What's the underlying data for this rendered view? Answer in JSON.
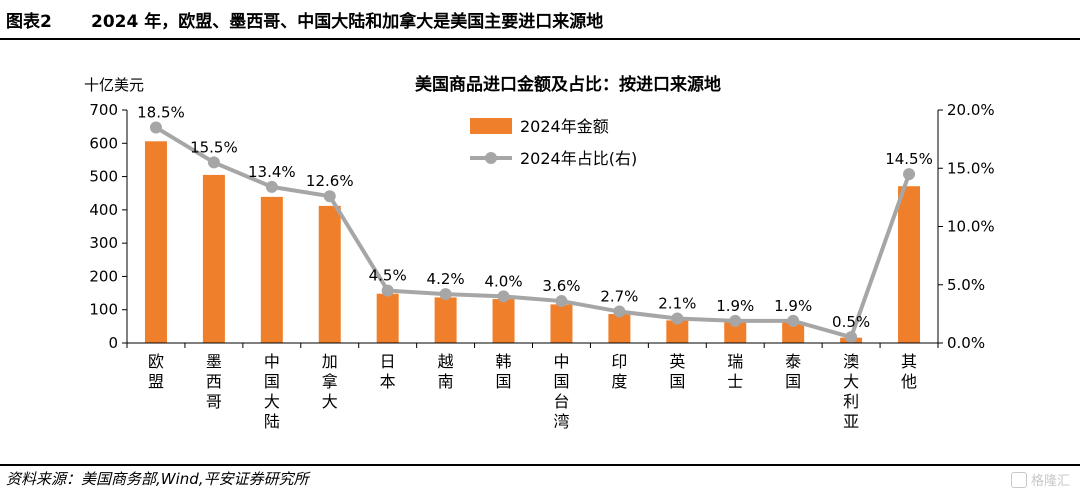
{
  "header": {
    "figure_no": "图表2",
    "title": "2024 年，欧盟、墨西哥、中国大陆和加拿大是美国主要进口来源地"
  },
  "footer": {
    "source": "资料来源：美国商务部,Wind,平安证券研究所"
  },
  "watermark": {
    "text": "格隆汇"
  },
  "chart_data": {
    "type": "bar",
    "title": "美国商品进口金额及占比：按进口来源地",
    "ylabel": "十亿美元",
    "ylim": [
      0,
      700
    ],
    "y_ticks": [
      "0",
      "100",
      "200",
      "300",
      "400",
      "500",
      "600",
      "700"
    ],
    "y2lim": [
      0,
      20
    ],
    "y2_ticks": [
      "0.0%",
      "5.0%",
      "10.0%",
      "15.0%",
      "20.0%"
    ],
    "legend_position": "top-center",
    "categories": [
      "欧盟",
      "墨西哥",
      "中国大陆",
      "加拿大",
      "日本",
      "越南",
      "韩国",
      "中国台湾",
      "印度",
      "英国",
      "瑞士",
      "泰国",
      "澳大利亚",
      "其他"
    ],
    "series": [
      {
        "name": "2024年金额",
        "type": "bar",
        "color": "#f07f2b",
        "values": [
          606,
          505,
          439,
          412,
          148,
          137,
          132,
          116,
          87,
          68,
          63,
          63,
          16,
          471
        ]
      },
      {
        "name": "2024年占比(右)",
        "type": "line",
        "axis": "right",
        "color": "#a6a6a6",
        "values": [
          18.5,
          15.5,
          13.4,
          12.6,
          4.5,
          4.2,
          4.0,
          3.6,
          2.7,
          2.1,
          1.9,
          1.9,
          0.5,
          14.5
        ],
        "labels": [
          "18.5%",
          "15.5%",
          "13.4%",
          "12.6%",
          "4.5%",
          "4.2%",
          "4.0%",
          "3.6%",
          "2.7%",
          "2.1%",
          "1.9%",
          "1.9%",
          "0.5%",
          "14.5%"
        ]
      }
    ]
  }
}
